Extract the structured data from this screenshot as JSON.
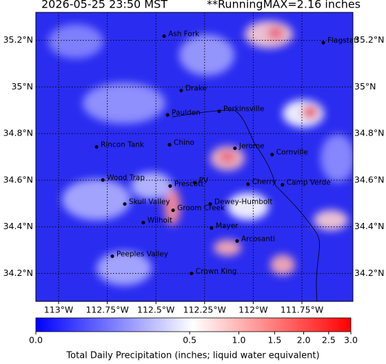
{
  "title": {
    "left": "2026-05-25 23:50 MST",
    "right": "**RunningMAX=2.16 inches"
  },
  "map": {
    "lonlim": [
      -113.117,
      -111.488
    ],
    "latlim": [
      34.08,
      35.32
    ],
    "lon_ticks": [
      {
        "value": -113,
        "label": "113°W"
      },
      {
        "value": -112.75,
        "label": "112.75°W"
      },
      {
        "value": -112.5,
        "label": "112.5°W"
      },
      {
        "value": -112.25,
        "label": "112.25°W"
      },
      {
        "value": -112,
        "label": "112°W"
      },
      {
        "value": -111.75,
        "label": "111.75°W"
      }
    ],
    "lat_ticks": [
      {
        "value": 35.2,
        "label": "35.2°N"
      },
      {
        "value": 35,
        "label": "35°N"
      },
      {
        "value": 34.8,
        "label": "34.8°N"
      },
      {
        "value": 34.6,
        "label": "34.6°N"
      },
      {
        "value": 34.4,
        "label": "34.4°N"
      },
      {
        "value": 34.2,
        "label": "34.2°N"
      }
    ],
    "places": [
      {
        "name": "Ash Fork",
        "lon": -112.458,
        "lat": 35.218
      },
      {
        "name": "Flagstaff",
        "lon": -111.64,
        "lat": 35.19
      },
      {
        "name": "Drake",
        "lon": -112.37,
        "lat": 34.985
      },
      {
        "name": "Paulden",
        "lon": -112.44,
        "lat": 34.88
      },
      {
        "name": "Perkinsville",
        "lon": -112.175,
        "lat": 34.896
      },
      {
        "name": "Rincon Tank",
        "lon": -112.805,
        "lat": 34.743
      },
      {
        "name": "Chino",
        "lon": -112.43,
        "lat": 34.752
      },
      {
        "name": "Jerome",
        "lon": -112.094,
        "lat": 34.737
      },
      {
        "name": "Cornville",
        "lon": -111.903,
        "lat": 34.71
      },
      {
        "name": "Wood Trap",
        "lon": -112.773,
        "lat": 34.601
      },
      {
        "name": "PV",
        "lon": -112.3,
        "lat": 34.589
      },
      {
        "name": "Prescott",
        "lon": -112.427,
        "lat": 34.575
      },
      {
        "name": "Cherry",
        "lon": -112.027,
        "lat": 34.583
      },
      {
        "name": "Camp Verde",
        "lon": -111.85,
        "lat": 34.58
      },
      {
        "name": "Skull Valley",
        "lon": -112.66,
        "lat": 34.498
      },
      {
        "name": "Dewey-Humbolt",
        "lon": -112.221,
        "lat": 34.498
      },
      {
        "name": "Groom Creek",
        "lon": -112.412,
        "lat": 34.471
      },
      {
        "name": "Wilhoit",
        "lon": -112.565,
        "lat": 34.418
      },
      {
        "name": "Mayer",
        "lon": -112.214,
        "lat": 34.395
      },
      {
        "name": "Arcosanti",
        "lon": -112.083,
        "lat": 34.339
      },
      {
        "name": "Peeples Valley",
        "lon": -112.724,
        "lat": 34.274
      },
      {
        "name": "Crown King",
        "lon": -112.317,
        "lat": 34.2
      }
    ]
  },
  "colorbar": {
    "label": "Total Daily Precipitation (inches; liquid water equivalent)",
    "lim": [
      0,
      3
    ],
    "exponent": 0.4,
    "colors": [
      "#0000ff",
      "#ffffff",
      "#ff0000"
    ],
    "ticks": [
      {
        "value": 0,
        "label": "0.0"
      },
      0.5,
      {
        "value": 1,
        "label": "1.0"
      },
      1.5,
      {
        "value": 2,
        "label": "2.0"
      },
      2.5,
      {
        "value": 3,
        "label": "3.0"
      }
    ]
  }
}
